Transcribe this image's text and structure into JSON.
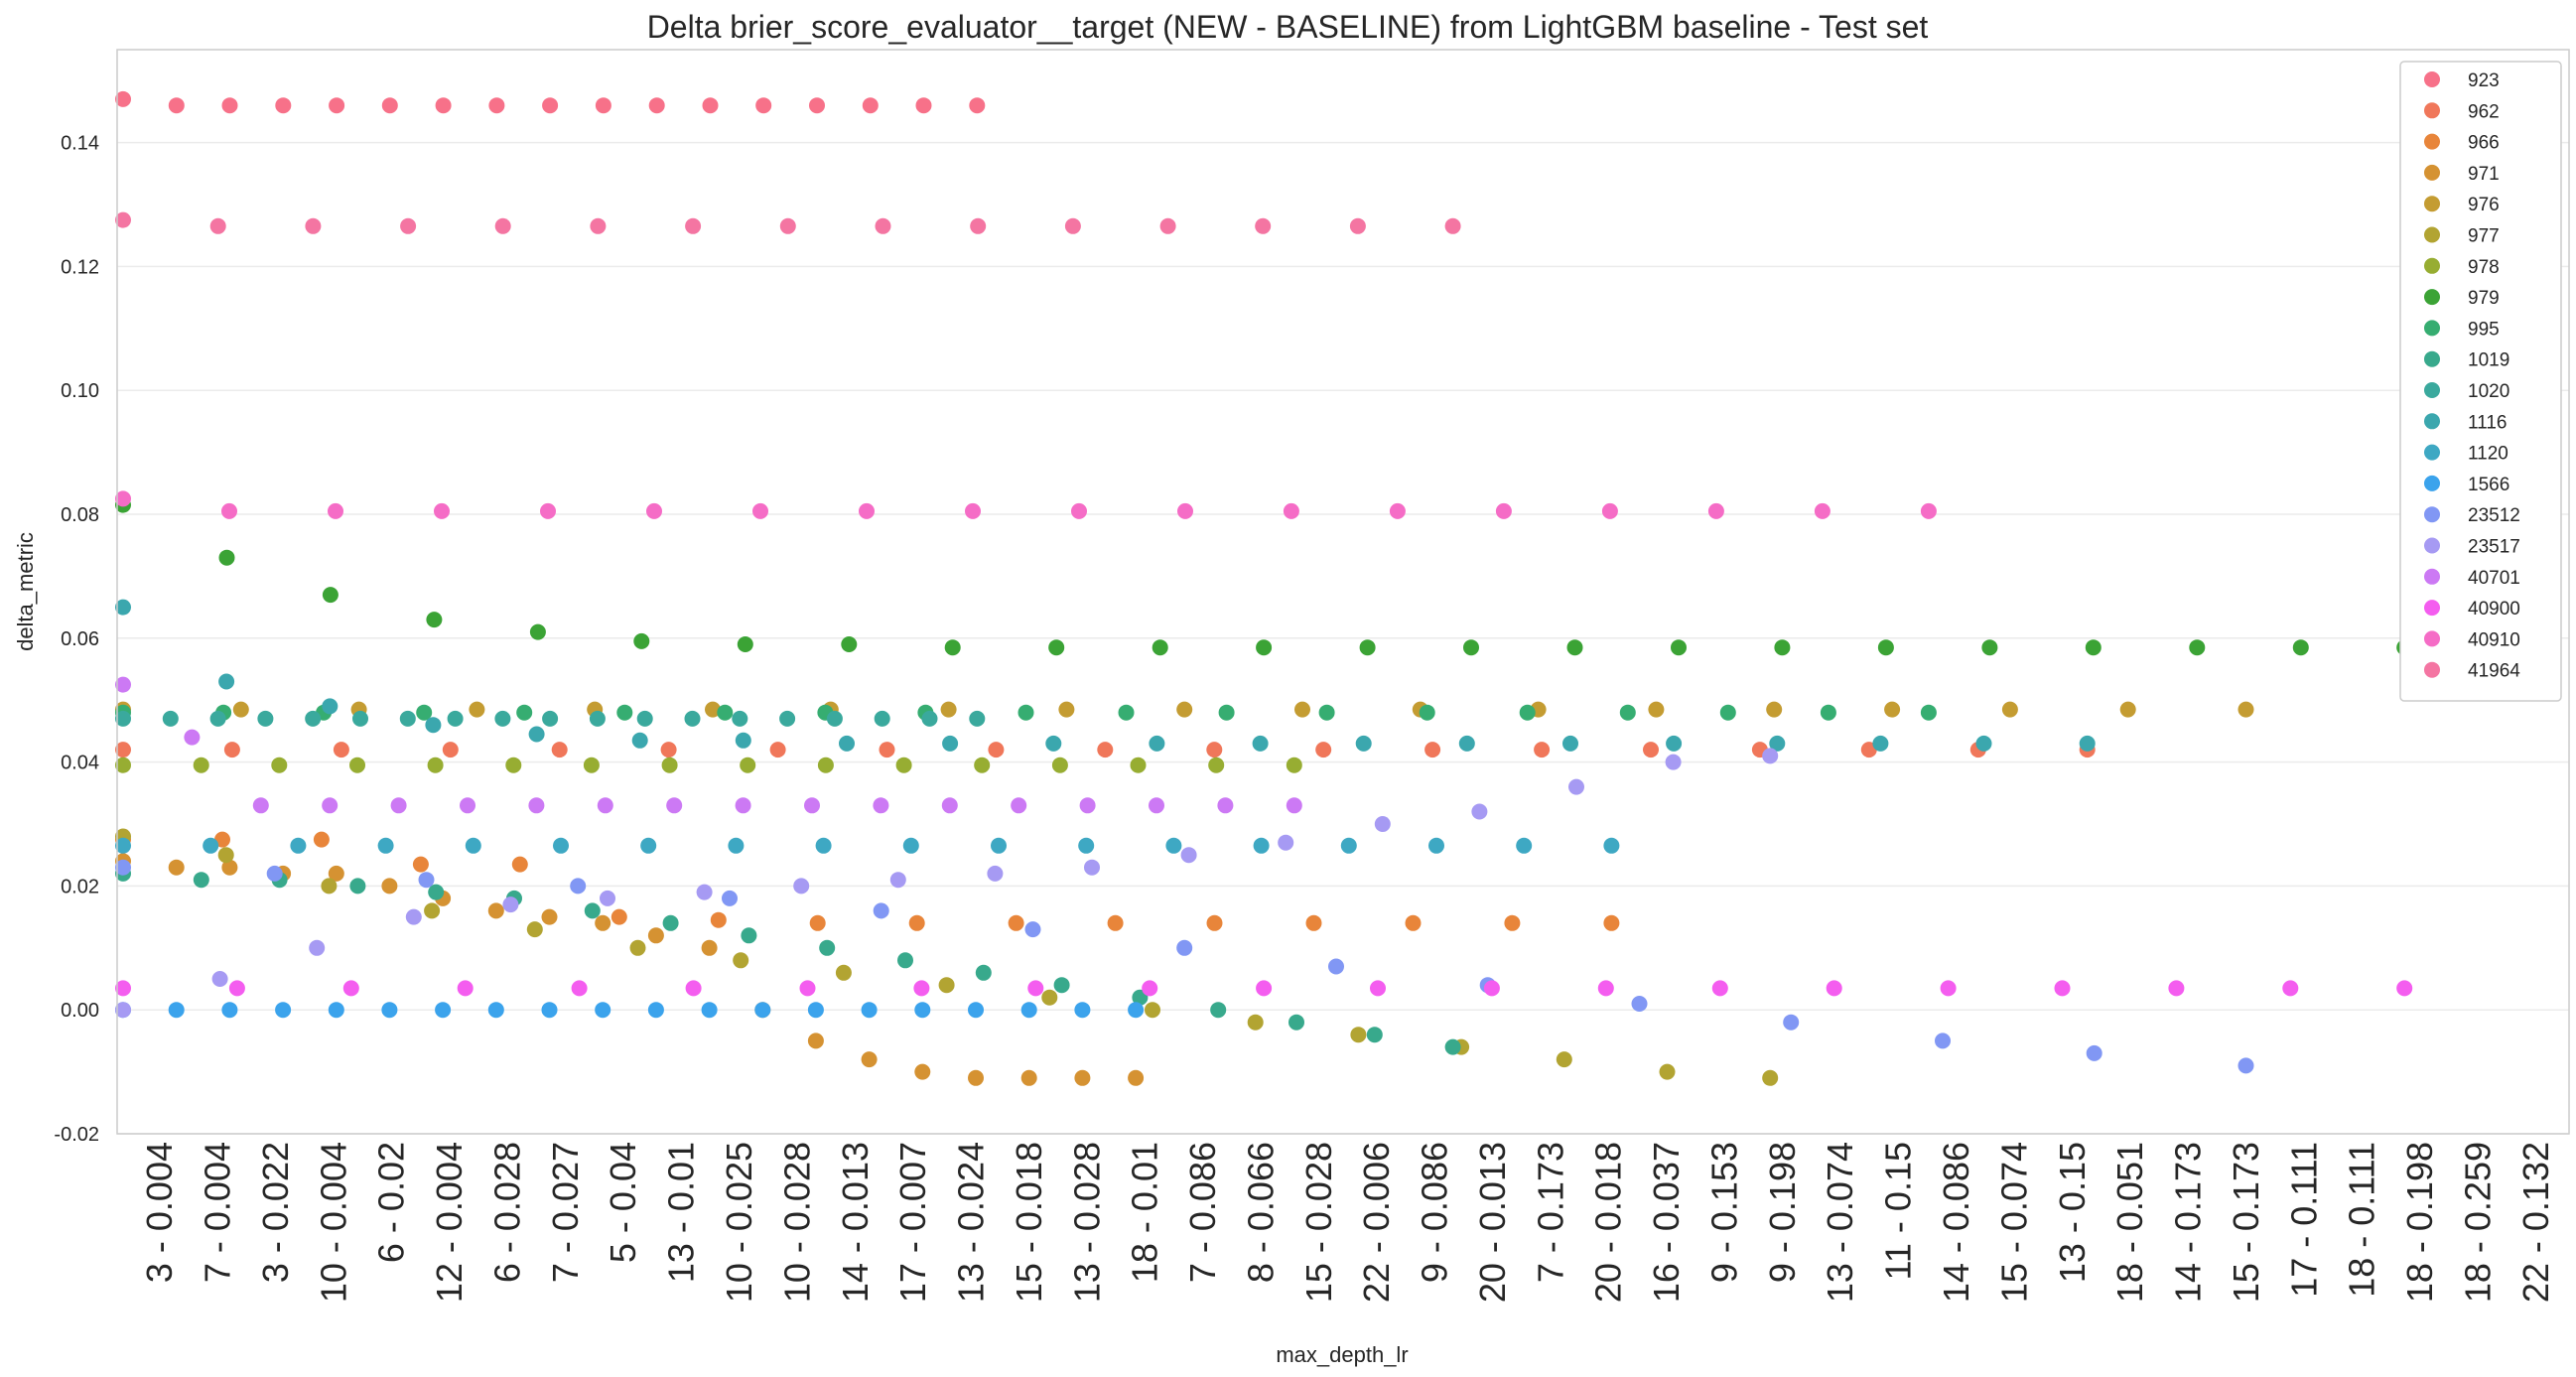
{
  "chart_data": {
    "type": "scatter",
    "title": "Delta brier_score_evaluator__target (NEW - BASELINE) from LightGBM baseline - Test set",
    "xlabel": "max_depth_lr",
    "ylabel": "delta_metric",
    "ylim": [
      -0.02,
      0.155
    ],
    "yticks": [
      "-0.02",
      "0.00",
      "0.02",
      "0.04",
      "0.06",
      "0.08",
      "0.10",
      "0.12",
      "0.14"
    ],
    "ytick_values": [
      -0.02,
      0.0,
      0.02,
      0.04,
      0.06,
      0.08,
      0.1,
      0.12,
      0.14
    ],
    "grid": "horizontal",
    "legend_position": "top-right",
    "x_tick_labels": [
      "3 - 0.004",
      "7 - 0.004",
      "3 - 0.022",
      "10 - 0.004",
      "6 - 0.02",
      "12 - 0.004",
      "6 - 0.028",
      "7 - 0.027",
      "5 - 0.04",
      "13 - 0.01",
      "10 - 0.025",
      "10 - 0.028",
      "14 - 0.013",
      "17 - 0.007",
      "13 - 0.024",
      "15 - 0.018",
      "13 - 0.028",
      "18 - 0.01",
      "7 - 0.086",
      "8 - 0.066",
      "15 - 0.028",
      "22 - 0.006",
      "9 - 0.086",
      "20 - 0.013",
      "7 - 0.173",
      "20 - 0.018",
      "16 - 0.037",
      "9 - 0.153",
      "9 - 0.198",
      "13 - 0.074",
      "11 - 0.15",
      "14 - 0.086",
      "15 - 0.074",
      "13 - 0.15",
      "18 - 0.051",
      "14 - 0.173",
      "15 - 0.173",
      "17 - 0.111",
      "18 - 0.111",
      "18 - 0.198",
      "18 - 0.259",
      "22 - 0.132"
    ],
    "series": [
      {
        "name": "923",
        "color": "#f77189",
        "values": [
          0.147,
          0.146,
          0.146,
          0.146,
          0.146,
          0.146,
          0.146,
          0.146,
          0.146,
          0.146,
          0.146,
          0.146,
          0.146,
          0.146,
          0.146,
          0.146,
          0.146
        ]
      },
      {
        "name": "962",
        "color": "#f0775a",
        "values": [
          0.042,
          0.042,
          0.042,
          0.042,
          0.042,
          0.042,
          0.042,
          0.042,
          0.042,
          0.042,
          0.042,
          0.042,
          0.042,
          0.042,
          0.042,
          0.042,
          0.042,
          0.042,
          0.042
        ]
      },
      {
        "name": "966",
        "color": "#e8853a",
        "values": [
          0.0275,
          0.0275,
          0.0275,
          0.0235,
          0.0235,
          0.015,
          0.0145,
          0.014,
          0.014,
          0.014,
          0.014,
          0.014,
          0.014,
          0.014,
          0.014,
          0.014
        ]
      },
      {
        "name": "971",
        "color": "#d59232",
        "values": [
          0.024,
          0.023,
          0.023,
          0.022,
          0.022,
          0.02,
          0.018,
          0.016,
          0.015,
          0.014,
          0.012,
          0.01,
          0.0,
          -0.005,
          -0.008,
          -0.01,
          -0.011,
          -0.011,
          -0.011,
          -0.011
        ]
      },
      {
        "name": "976",
        "color": "#c49c32",
        "values": [
          0.0485,
          0.0485,
          0.0485,
          0.0485,
          0.0485,
          0.0485,
          0.0485,
          0.0485,
          0.0485,
          0.0485,
          0.0485,
          0.0485,
          0.0485,
          0.0485,
          0.0485,
          0.0485,
          0.0485,
          0.0485,
          0.0485
        ]
      },
      {
        "name": "977",
        "color": "#b2a432",
        "values": [
          0.028,
          0.025,
          0.02,
          0.016,
          0.013,
          0.01,
          0.008,
          0.006,
          0.004,
          0.002,
          0.0,
          -0.002,
          -0.004,
          -0.006,
          -0.008,
          -0.01,
          -0.011
        ]
      },
      {
        "name": "978",
        "color": "#97ad32",
        "values": [
          0.0395,
          0.0395,
          0.0395,
          0.0395,
          0.0395,
          0.0395,
          0.0395,
          0.0395,
          0.0395,
          0.0395,
          0.0395,
          0.0395,
          0.0395,
          0.0395,
          0.0395,
          0.0395
        ]
      },
      {
        "name": "979",
        "color": "#3ba335",
        "values": [
          0.0815,
          0.073,
          0.067,
          0.063,
          0.061,
          0.0595,
          0.059,
          0.059,
          0.0585,
          0.0585,
          0.0585,
          0.0585,
          0.0585,
          0.0585,
          0.0585,
          0.0585,
          0.0585,
          0.0585,
          0.0585,
          0.0585,
          0.0585,
          0.0585,
          0.0585
        ]
      },
      {
        "name": "995",
        "color": "#36ad71",
        "values": [
          0.048,
          0.048,
          0.048,
          0.048,
          0.048,
          0.048,
          0.048,
          0.048,
          0.048,
          0.048,
          0.048,
          0.048,
          0.048,
          0.048,
          0.048,
          0.048,
          0.048,
          0.048,
          0.048
        ]
      },
      {
        "name": "1019",
        "color": "#38a98c",
        "values": [
          0.022,
          0.021,
          0.021,
          0.02,
          0.019,
          0.018,
          0.016,
          0.014,
          0.012,
          0.01,
          0.008,
          0.006,
          0.004,
          0.002,
          0.0,
          -0.002,
          -0.004,
          -0.006
        ]
      },
      {
        "name": "1020",
        "color": "#3aa99d",
        "values": [
          0.047,
          0.047,
          0.047,
          0.047,
          0.047,
          0.047,
          0.047,
          0.047,
          0.047,
          0.047,
          0.047,
          0.047,
          0.047,
          0.047,
          0.047,
          0.047,
          0.047,
          0.047,
          0.047
        ]
      },
      {
        "name": "1116",
        "color": "#3ba7ae",
        "values": [
          0.065,
          0.053,
          0.049,
          0.046,
          0.0445,
          0.0435,
          0.0435,
          0.043,
          0.043,
          0.043,
          0.043,
          0.043,
          0.043,
          0.043,
          0.043,
          0.043,
          0.043,
          0.043,
          0.043,
          0.043
        ]
      },
      {
        "name": "1120",
        "color": "#3ea8c3",
        "values": [
          0.0265,
          0.0265,
          0.0265,
          0.0265,
          0.0265,
          0.0265,
          0.0265,
          0.0265,
          0.0265,
          0.0265,
          0.0265,
          0.0265,
          0.0265,
          0.0265,
          0.0265,
          0.0265,
          0.0265,
          0.0265
        ]
      },
      {
        "name": "1566",
        "color": "#3ba3ec",
        "values": [
          0.0,
          0.0,
          0.0,
          0.0,
          0.0,
          0.0,
          0.0,
          0.0,
          0.0,
          0.0,
          0.0,
          0.0,
          0.0,
          0.0,
          0.0,
          0.0,
          0.0,
          0.0,
          0.0,
          0.0
        ]
      },
      {
        "name": "23512",
        "color": "#8197f4",
        "values": [
          0.023,
          0.022,
          0.021,
          0.02,
          0.018,
          0.016,
          0.013,
          0.01,
          0.007,
          0.004,
          0.001,
          -0.002,
          -0.005,
          -0.007,
          -0.009
        ]
      },
      {
        "name": "23517",
        "color": "#a69af3",
        "values": [
          0.0,
          0.005,
          0.01,
          0.015,
          0.017,
          0.018,
          0.019,
          0.02,
          0.021,
          0.022,
          0.023,
          0.025,
          0.027,
          0.03,
          0.032,
          0.036,
          0.04,
          0.041
        ]
      },
      {
        "name": "40701",
        "color": "#cc79f4",
        "values": [
          0.0525,
          0.044,
          0.033,
          0.033,
          0.033,
          0.033,
          0.033,
          0.033,
          0.033,
          0.033,
          0.033,
          0.033,
          0.033,
          0.033,
          0.033,
          0.033,
          0.033,
          0.033
        ]
      },
      {
        "name": "40900",
        "color": "#f45def",
        "values": [
          0.0035,
          0.0035,
          0.0035,
          0.0035,
          0.0035,
          0.0035,
          0.0035,
          0.0035,
          0.0035,
          0.0035,
          0.0035,
          0.0035,
          0.0035,
          0.0035,
          0.0035,
          0.0035,
          0.0035,
          0.0035,
          0.0035,
          0.0035,
          0.0035
        ]
      },
      {
        "name": "40910",
        "color": "#f56cc6",
        "values": [
          0.0825,
          0.0805,
          0.0805,
          0.0805,
          0.0805,
          0.0805,
          0.0805,
          0.0805,
          0.0805,
          0.0805,
          0.0805,
          0.0805,
          0.0805,
          0.0805,
          0.0805,
          0.0805,
          0.0805,
          0.0805
        ]
      },
      {
        "name": "41964",
        "color": "#f475a2",
        "values": [
          0.1275,
          0.1265,
          0.1265,
          0.1265,
          0.1265,
          0.1265,
          0.1265,
          0.1265,
          0.1265,
          0.1265,
          0.1265,
          0.1265,
          0.1265,
          0.1265,
          0.1265
        ]
      }
    ]
  }
}
